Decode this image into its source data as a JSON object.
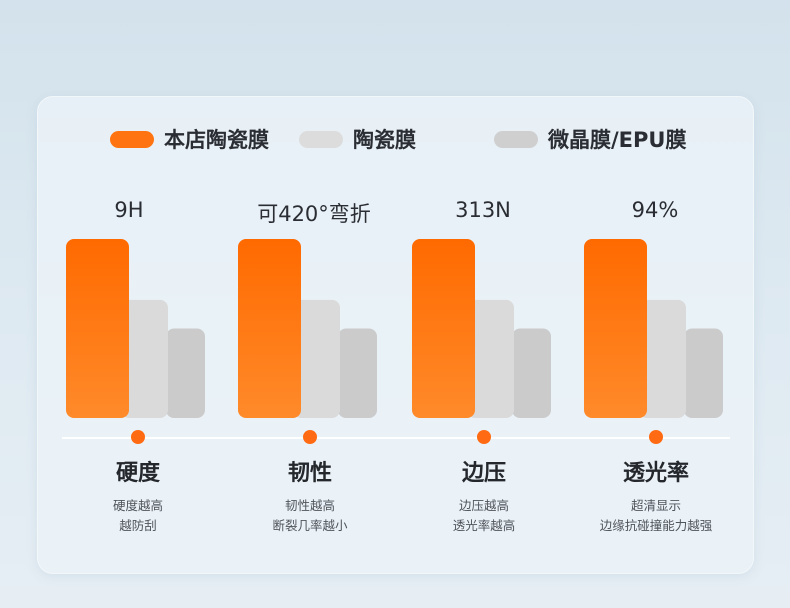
{
  "legend": [
    {
      "label": "本店陶瓷膜",
      "color": "#ff7410"
    },
    {
      "label": "陶瓷膜",
      "color": "#dcdcdc"
    },
    {
      "label": "微晶膜/EPU膜",
      "color": "#cfcfcf"
    }
  ],
  "chart_data": {
    "type": "bar",
    "categories": [
      "硬度",
      "韧性",
      "边压",
      "透光率"
    ],
    "series": [
      {
        "name": "本店陶瓷膜",
        "values": [
          100,
          100,
          100,
          100
        ]
      },
      {
        "name": "陶瓷膜",
        "values": [
          66,
          66,
          66,
          66
        ]
      },
      {
        "name": "微晶膜/EPU膜",
        "values": [
          50,
          50,
          50,
          50
        ]
      }
    ],
    "value_labels": [
      "9H",
      "可420°弯折",
      "313N",
      "94%"
    ],
    "descriptions": [
      [
        "硬度越高",
        "越防刮"
      ],
      [
        "韧性越高",
        "断裂几率越小"
      ],
      [
        "边压越高",
        "透光率越高"
      ],
      [
        "超清显示",
        "边缘抗碰撞能力越强"
      ]
    ],
    "colors": {
      "primary_top": "#ff6a00",
      "primary_bottom": "#ff8a2a",
      "secondary": "#dadada",
      "tertiary": "#cbcbcb",
      "dot": "#ff6a12"
    },
    "ylim": [
      0,
      100
    ],
    "grid": false,
    "legend_position": "top"
  }
}
